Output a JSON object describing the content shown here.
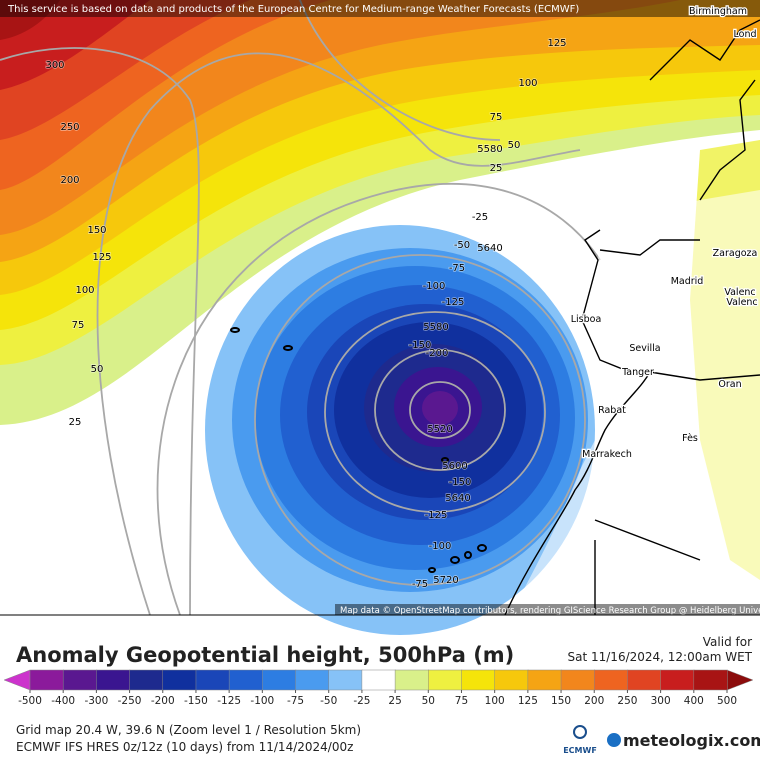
{
  "header": {
    "attribution": "This service is based on data and products of the European Centre for Medium-range Weather Forecasts (ECMWF)"
  },
  "map": {
    "contour_labels": [
      300,
      250,
      200,
      150,
      125,
      100,
      75,
      50,
      25,
      125,
      100,
      75,
      50,
      25,
      -25,
      -50,
      -75,
      -100,
      -125,
      -150,
      -200,
      -150,
      -125,
      -100,
      -75,
      5580,
      5640,
      5580,
      5520,
      5600,
      5640,
      5720
    ],
    "cities": [
      "Birmingham",
      "Lond",
      "Zaragoza",
      "Madrid",
      "Valenc",
      "Valenc",
      "Lisboa",
      "Sevilla",
      "Tanger",
      "Rabat",
      "Fès",
      "Oran",
      "Marrakech"
    ],
    "credit": "Map data © OpenStreetMap contributors, rendering GIScience Research Group @ Heidelberg University"
  },
  "legend": {
    "title": "Anomaly Geopotential height, 500hPa (m)",
    "valid_label": "Valid for",
    "valid_time": "Sat 11/16/2024, 12:00am WET",
    "ticks": [
      -500,
      -400,
      -300,
      -250,
      -200,
      -150,
      -125,
      -100,
      -75,
      -50,
      -25,
      25,
      50,
      75,
      100,
      125,
      150,
      200,
      250,
      300,
      400,
      500
    ],
    "colors": [
      "#8b1a9b",
      "#5a1890",
      "#3a1590",
      "#1e2a8e",
      "#10309e",
      "#1a46b8",
      "#2160d0",
      "#2d7de2",
      "#4a9bef",
      "#86c2f7",
      "#ffffff",
      "#d9f08a",
      "#eef040",
      "#f5e40a",
      "#f6c80c",
      "#f5a414",
      "#f2861c",
      "#ee6420",
      "#e04422",
      "#c81e1e",
      "#a81414"
    ],
    "under_color": "#cc33cc",
    "over_color": "#8b0c0c"
  },
  "footer": {
    "grid": "Grid map 20.4 W, 39.6 N (Zoom level 1 / Resolution 5km)",
    "model": "ECMWF IFS HRES 0z/12z (10 days) from  11/14/2024/00z",
    "ecmwf": "ECMWF",
    "brand": "meteologix.com"
  }
}
